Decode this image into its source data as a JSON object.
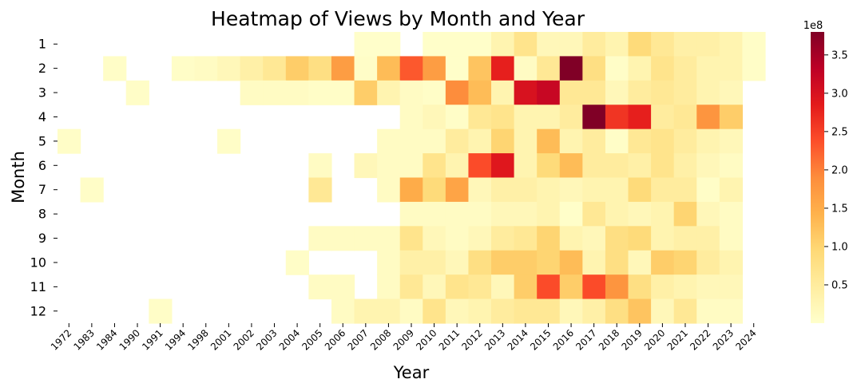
{
  "chart_data": {
    "type": "heatmap",
    "title": "Heatmap of Views by Month and Year",
    "xlabel": "Year",
    "ylabel": "Month",
    "x": [
      "1972",
      "1983",
      "1984",
      "1990",
      "1991",
      "1994",
      "1998",
      "2001",
      "2002",
      "2003",
      "2004",
      "2005",
      "2006",
      "2007",
      "2008",
      "2009",
      "2010",
      "2011",
      "2012",
      "2013",
      "2014",
      "2015",
      "2016",
      "2017",
      "2018",
      "2019",
      "2020",
      "2021",
      "2022",
      "2023",
      "2024"
    ],
    "y": [
      "1",
      "2",
      "3",
      "4",
      "5",
      "6",
      "7",
      "8",
      "9",
      "10",
      "11",
      "12"
    ],
    "values_scale_label": "1e8",
    "colorbar": {
      "min": 0,
      "max": 3.8,
      "ticks": [
        0.5,
        1.0,
        1.5,
        2.0,
        2.5,
        3.0,
        3.5
      ],
      "tick_labels": [
        "0.5",
        "1.0",
        "1.5",
        "2.0",
        "2.5",
        "3.0",
        "3.5"
      ],
      "offset_label": "1e8",
      "colormap": "YlOrRd"
    },
    "values": [
      [
        null,
        null,
        null,
        null,
        null,
        null,
        null,
        null,
        null,
        null,
        null,
        null,
        null,
        0.02,
        0.02,
        null,
        0.03,
        0.03,
        0.03,
        0.3,
        0.7,
        0.2,
        0.2,
        0.5,
        0.3,
        0.9,
        0.6,
        0.4,
        0.4,
        0.3,
        0.05
      ],
      [
        null,
        null,
        0.05,
        null,
        null,
        0.05,
        0.1,
        0.2,
        0.4,
        0.6,
        1.1,
        0.8,
        1.7,
        0.05,
        1.3,
        2.3,
        1.7,
        0.03,
        1.2,
        2.8,
        0.1,
        0.6,
        3.8,
        0.8,
        0.05,
        0.3,
        0.7,
        0.5,
        0.3,
        0.3,
        0.05
      ],
      [
        null,
        null,
        null,
        0.05,
        null,
        null,
        null,
        null,
        0.1,
        0.1,
        0.1,
        0.05,
        0.05,
        1.1,
        0.3,
        0.1,
        0.05,
        1.9,
        1.3,
        0.3,
        3.0,
        3.2,
        0.6,
        0.6,
        0.2,
        0.5,
        0.6,
        0.5,
        0.3,
        0.2,
        null
      ],
      [
        null,
        null,
        null,
        null,
        null,
        null,
        null,
        null,
        null,
        null,
        null,
        null,
        null,
        null,
        null,
        0.1,
        0.2,
        0.05,
        0.6,
        0.7,
        0.3,
        0.3,
        0.5,
        3.8,
        2.6,
        2.8,
        0.5,
        0.6,
        1.8,
        1.1,
        null
      ],
      [
        0.05,
        null,
        null,
        null,
        null,
        null,
        null,
        0.05,
        null,
        null,
        null,
        null,
        null,
        null,
        0.1,
        0.1,
        0.1,
        0.5,
        0.3,
        1.0,
        0.3,
        1.3,
        0.3,
        0.5,
        0.05,
        0.6,
        0.7,
        0.5,
        0.3,
        0.2,
        null
      ],
      [
        null,
        null,
        null,
        null,
        null,
        null,
        null,
        null,
        null,
        null,
        null,
        0.1,
        null,
        0.2,
        0.1,
        0.1,
        0.7,
        0.3,
        2.4,
        2.9,
        0.3,
        0.9,
        1.3,
        0.5,
        0.5,
        0.4,
        0.7,
        0.4,
        0.2,
        0.1,
        null
      ],
      [
        null,
        0.05,
        null,
        null,
        null,
        null,
        null,
        null,
        null,
        null,
        null,
        0.6,
        null,
        null,
        0.1,
        1.5,
        0.9,
        1.6,
        0.2,
        0.4,
        0.4,
        0.3,
        0.2,
        0.3,
        0.3,
        0.9,
        0.5,
        0.5,
        0.05,
        0.3,
        null
      ],
      [
        null,
        null,
        null,
        null,
        null,
        null,
        null,
        null,
        null,
        null,
        null,
        null,
        null,
        null,
        null,
        0.1,
        0.1,
        0.1,
        0.1,
        0.2,
        0.2,
        0.3,
        0.03,
        0.6,
        0.3,
        0.2,
        0.3,
        1.0,
        0.2,
        0.1,
        null
      ],
      [
        null,
        null,
        null,
        null,
        null,
        null,
        null,
        null,
        null,
        null,
        null,
        0.1,
        0.1,
        0.1,
        0.1,
        0.7,
        0.2,
        0.1,
        0.2,
        0.5,
        0.6,
        1.0,
        0.3,
        0.2,
        0.8,
        0.9,
        0.3,
        0.4,
        0.4,
        0.1,
        null
      ],
      [
        null,
        null,
        null,
        null,
        null,
        null,
        null,
        null,
        null,
        null,
        0.05,
        null,
        null,
        null,
        0.1,
        0.4,
        0.4,
        0.2,
        0.8,
        1.1,
        1.1,
        1.0,
        1.3,
        0.3,
        0.8,
        0.2,
        1.1,
        1.0,
        0.5,
        0.3,
        null
      ],
      [
        null,
        null,
        null,
        null,
        null,
        null,
        null,
        null,
        null,
        null,
        null,
        0.1,
        0.1,
        null,
        0.1,
        0.6,
        0.2,
        0.7,
        0.6,
        0.2,
        1.1,
        2.4,
        1.1,
        2.4,
        1.8,
        0.8,
        0.4,
        0.3,
        0.2,
        0.2,
        null
      ],
      [
        null,
        null,
        null,
        null,
        0.05,
        null,
        null,
        null,
        null,
        null,
        null,
        null,
        0.1,
        0.3,
        0.3,
        0.1,
        0.7,
        0.2,
        0.3,
        0.5,
        0.6,
        0.6,
        0.2,
        0.4,
        0.8,
        1.2,
        0.2,
        0.6,
        0.1,
        0.1,
        null
      ]
    ]
  }
}
